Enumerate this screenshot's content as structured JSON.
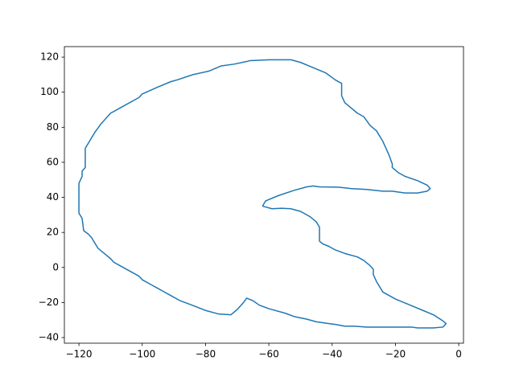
{
  "chart_data": {
    "type": "line",
    "color": "#1f77b4",
    "x": [
      -62,
      -61,
      -57,
      -52,
      -48,
      -46,
      -44,
      -38,
      -34,
      -29,
      -24,
      -21,
      -17,
      -13,
      -10,
      -9,
      -10,
      -13,
      -17,
      -19,
      -21,
      -21,
      -22,
      -23,
      -24,
      -26,
      -28,
      -30,
      -32,
      -36,
      -37,
      -37,
      -39,
      -42,
      -46,
      -50,
      -53,
      -60,
      -66,
      -67,
      -71,
      -75,
      -79,
      -84,
      -89,
      -91,
      -95,
      -100,
      -101,
      -103,
      -107,
      -110,
      -111,
      -113,
      -115,
      -116,
      -117,
      -118,
      -118,
      -118,
      -119,
      -119,
      -120,
      -120,
      -120,
      -120,
      -119,
      -118.5,
      -117,
      -116,
      -115,
      -114,
      -112,
      -110,
      -109,
      -106,
      -103,
      -101,
      -100,
      -97,
      -95,
      -94,
      -91,
      -88,
      -85,
      -80,
      -76,
      -72,
      -70,
      -68,
      -67,
      -65,
      -63,
      -60,
      -55,
      -52,
      -48,
      -45,
      -41,
      -39,
      -36,
      -33,
      -29,
      -20,
      -15,
      -13,
      -8,
      -5,
      -4,
      -5,
      -8,
      -12,
      -16,
      -20,
      -24,
      -25,
      -26,
      -27,
      -27,
      -28,
      -30,
      -32,
      -36,
      -39,
      -41,
      -43,
      -44,
      -44,
      -44,
      -45,
      -47,
      -50,
      -53,
      -56,
      -59,
      -62
    ],
    "values": [
      35,
      38,
      41,
      44,
      46,
      46.5,
      46,
      45.8,
      45,
      44.5,
      43.5,
      43.5,
      42.5,
      42.5,
      43.5,
      45,
      47,
      49.5,
      52,
      54,
      57,
      59,
      64,
      68,
      72,
      78,
      81,
      86,
      88,
      94,
      98,
      105,
      107,
      111,
      114,
      117,
      118.5,
      118.5,
      118,
      117.5,
      116,
      115,
      112,
      110,
      107,
      106,
      103,
      99,
      97,
      95,
      91,
      88,
      86,
      82,
      77,
      74,
      71,
      68,
      64,
      57,
      55,
      52,
      48,
      45,
      40,
      31,
      28,
      21,
      19,
      17,
      14,
      11,
      8,
      5,
      3,
      0,
      -3,
      -5,
      -7,
      -10,
      -12,
      -13,
      -16,
      -19,
      -21,
      -24.5,
      -26.5,
      -27,
      -24,
      -20,
      -17.5,
      -19,
      -21.5,
      -23.5,
      -26,
      -28,
      -29.5,
      -31,
      -32,
      -32.5,
      -33.5,
      -33.5,
      -34,
      -34,
      -34,
      -34.5,
      -34.5,
      -34,
      -32,
      -30.5,
      -27,
      -24,
      -21,
      -18,
      -14,
      -11,
      -8,
      -4,
      -1,
      1,
      4,
      6,
      8,
      10,
      12,
      13.5,
      15,
      18,
      23,
      26,
      29,
      32,
      33.5,
      33.8,
      33.5,
      35
    ],
    "xlim": [
      -124.6,
      1.5
    ],
    "ylim": [
      -43.2,
      126
    ],
    "xticks": [
      {
        "value": -120,
        "label": "−120"
      },
      {
        "value": -100,
        "label": "−100"
      },
      {
        "value": -80,
        "label": "−80"
      },
      {
        "value": -60,
        "label": "−60"
      },
      {
        "value": -40,
        "label": "−40"
      },
      {
        "value": -20,
        "label": "−20"
      },
      0
    ],
    "yticks": [
      {
        "value": -40,
        "label": "−40"
      },
      {
        "value": -20,
        "label": "−20"
      },
      0,
      20,
      40,
      60,
      80,
      100,
      120
    ]
  }
}
